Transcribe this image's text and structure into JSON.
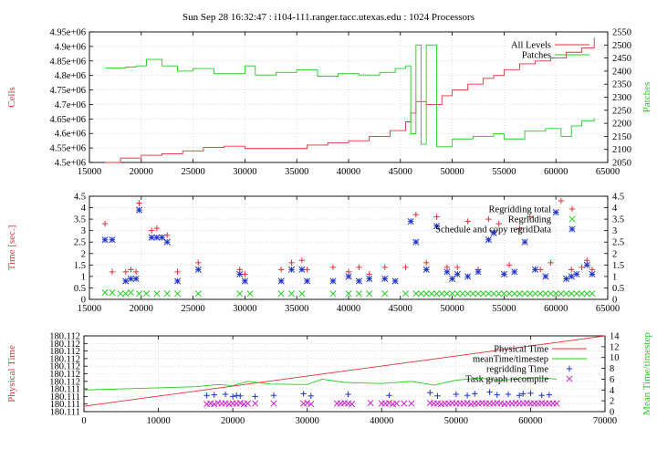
{
  "title": "Sun Sep 28 16:32:47 : i104-111.ranger.tacc.utexas.edu : 1024 Processors",
  "colors": {
    "red": "#e0303a",
    "green": "#22cc22",
    "blue": "#2233cc",
    "magenta": "#cc22cc",
    "grid": "#c8c8c8",
    "frame": "#000000"
  },
  "chart_data": [
    {
      "type": "line",
      "ylabel": "Cells",
      "y2label": "Patches",
      "xlim": [
        15000,
        65000
      ],
      "ylim": [
        4500000,
        4950000
      ],
      "y2lim": [
        2050,
        2550
      ],
      "xticks": [
        "15000",
        "20000",
        "25000",
        "30000",
        "35000",
        "40000",
        "45000",
        "50000",
        "55000",
        "60000",
        "65000"
      ],
      "yticks": [
        "4.5e+06",
        "4.55e+06",
        "4.6e+06",
        "4.65e+06",
        "4.7e+06",
        "4.75e+06",
        "4.8e+06",
        "4.85e+06",
        "4.9e+06",
        "4.95e+06"
      ],
      "y2ticks": [
        "2050",
        "2100",
        "2150",
        "2200",
        "2250",
        "2300",
        "2350",
        "2400",
        "2450",
        "2500",
        "2550"
      ],
      "legend_position": "top-right",
      "series": [
        {
          "name": "All Levels",
          "color": "red",
          "axis": "y",
          "x": [
            16500,
            18000,
            20000,
            22000,
            24000,
            26000,
            28000,
            30000,
            34000,
            36000,
            38000,
            40000,
            42000,
            44000,
            45500,
            46000,
            46500,
            47500,
            49000,
            50000,
            51500,
            53000,
            54000,
            55000,
            56500,
            58000,
            59500,
            61000,
            62500,
            63700
          ],
          "y": [
            4500000,
            4515000,
            4525000,
            4530000,
            4540000,
            4552000,
            4556000,
            4548000,
            4548000,
            4560000,
            4568000,
            4575000,
            4590000,
            4610000,
            4640000,
            4670000,
            4710000,
            4700000,
            4730000,
            4750000,
            4770000,
            4790000,
            4800000,
            4820000,
            4840000,
            4850000,
            4860000,
            4880000,
            4895000,
            4930000
          ]
        },
        {
          "name": "Patches",
          "color": "green",
          "axis": "y2",
          "x": [
            16500,
            18500,
            19500,
            20500,
            22000,
            23500,
            25000,
            27000,
            29500,
            30000,
            31000,
            33000,
            35000,
            37000,
            39000,
            41000,
            43000,
            44500,
            45500,
            46000,
            46500,
            47000,
            47500,
            48500,
            50000,
            52000,
            54000,
            55000,
            57000,
            59000,
            60500,
            61500,
            62500,
            63700
          ],
          "y": [
            2412,
            2415,
            2420,
            2445,
            2420,
            2400,
            2410,
            2390,
            2390,
            2420,
            2385,
            2395,
            2405,
            2380,
            2390,
            2385,
            2395,
            2410,
            2420,
            2160,
            2500,
            2120,
            2500,
            2110,
            2140,
            2150,
            2160,
            2140,
            2170,
            2180,
            2150,
            2190,
            2210,
            2220
          ]
        }
      ]
    },
    {
      "type": "scatter",
      "ylabel": "Time [sec.]",
      "xlim": [
        15000,
        65000
      ],
      "ylim": [
        0,
        4.5
      ],
      "xticks": [
        "15000",
        "20000",
        "25000",
        "30000",
        "35000",
        "40000",
        "45000",
        "50000",
        "55000",
        "60000",
        "65000"
      ],
      "yticks": [
        "0",
        "0.5",
        "1",
        "1.5",
        "2",
        "2.5",
        "3",
        "3.5",
        "4",
        "4.5"
      ],
      "legend_position": "top-right",
      "series": [
        {
          "name": "Regridding total",
          "color": "red",
          "marker": "plus",
          "x": [
            16500,
            17200,
            18500,
            19000,
            19500,
            19800,
            21000,
            21500,
            22500,
            23500,
            25500,
            29500,
            30000,
            33500,
            34500,
            35500,
            36000,
            38500,
            40000,
            41000,
            42000,
            43500,
            45500,
            46500,
            47500,
            48500,
            49500,
            50500,
            51500,
            52500,
            53500,
            54500,
            55500,
            56500,
            57500,
            58500,
            59500,
            60500,
            61500,
            62500,
            63000,
            63500
          ],
          "y": [
            3.3,
            1.2,
            1.2,
            1.3,
            1.2,
            4.2,
            3.0,
            3.1,
            2.8,
            1.2,
            1.6,
            1.3,
            1.1,
            1.3,
            1.6,
            1.7,
            1.3,
            1.4,
            1.2,
            1.4,
            1.1,
            1.4,
            1.4,
            3.7,
            1.6,
            3.6,
            1.4,
            1.4,
            3.4,
            1.3,
            3.5,
            3.3,
            1.5,
            3.1,
            3.6,
            1.3,
            1.6,
            4.3,
            1.3,
            1.4,
            1.7,
            1.3
          ]
        },
        {
          "name": "Regridding",
          "color": "green",
          "marker": "cross",
          "x": [
            16500,
            17200,
            18000,
            18500,
            19000,
            19800,
            20500,
            21500,
            22500,
            23500,
            25500,
            29500,
            30500,
            33500,
            34500,
            35500,
            38500,
            40000,
            41000,
            42000,
            43500,
            45500,
            46500,
            47000,
            47500,
            48000,
            48500,
            49000,
            49500,
            50000,
            50500,
            51000,
            51500,
            52000,
            52500,
            53000,
            53500,
            54000,
            54500,
            55000,
            55500,
            56000,
            56500,
            57000,
            57500,
            58000,
            58500,
            59000,
            59500,
            60000,
            60500,
            61000,
            61500,
            62000,
            62500,
            63000,
            63500
          ],
          "y": [
            0.3,
            0.3,
            0.25,
            0.25,
            0.3,
            0.25,
            0.25,
            0.25,
            0.25,
            0.25,
            0.25,
            0.25,
            0.25,
            0.25,
            0.25,
            0.25,
            0.25,
            0.25,
            0.25,
            0.25,
            0.25,
            0.25,
            0.25,
            0.25,
            0.25,
            0.25,
            0.25,
            0.25,
            0.25,
            0.25,
            0.25,
            0.25,
            0.25,
            0.25,
            0.25,
            0.25,
            0.25,
            0.25,
            0.25,
            0.25,
            0.25,
            0.25,
            0.25,
            0.25,
            0.25,
            0.25,
            0.25,
            0.25,
            0.25,
            0.25,
            0.25,
            0.25,
            0.25,
            0.25,
            0.25,
            0.25,
            0.25
          ]
        },
        {
          "name": "Schedule and copy regridData",
          "color": "blue",
          "marker": "star",
          "x": [
            16500,
            17200,
            18500,
            19000,
            19500,
            19800,
            21000,
            21500,
            22000,
            22500,
            23500,
            25500,
            29500,
            30000,
            33500,
            34500,
            35500,
            36000,
            38500,
            40000,
            41000,
            42000,
            43500,
            44500,
            46000,
            46500,
            47500,
            48500,
            49500,
            50000,
            50500,
            51500,
            52500,
            53500,
            54000,
            55000,
            56000,
            57000,
            58000,
            59000,
            60000,
            61000,
            61500,
            62000,
            63000,
            63500
          ],
          "y": [
            2.6,
            2.6,
            0.8,
            0.9,
            0.9,
            3.9,
            2.7,
            2.7,
            2.7,
            2.5,
            0.8,
            1.3,
            1.1,
            0.8,
            0.8,
            1.3,
            1.3,
            0.8,
            0.8,
            1.0,
            0.8,
            0.9,
            0.9,
            0.8,
            3.4,
            2.5,
            1.3,
            3.2,
            1.2,
            0.9,
            1.1,
            1.0,
            1.2,
            2.6,
            2.9,
            1.1,
            1.2,
            2.5,
            1.3,
            1.0,
            3.8,
            0.9,
            1.0,
            1.1,
            1.5,
            1.1
          ]
        }
      ]
    },
    {
      "type": "line",
      "ylabel": "Physical Time",
      "y2label": "Mean Time/timestep",
      "xlim": [
        0,
        70000
      ],
      "ylim": [
        180.111,
        180.112
      ],
      "y2lim": [
        0,
        14
      ],
      "xticks": [
        "0",
        "10000",
        "20000",
        "30000",
        "40000",
        "50000",
        "60000",
        "70000"
      ],
      "yticks": [
        "180.111",
        "180.111",
        "180.111",
        "180.111",
        "180.112",
        "180.112",
        "180.112",
        "180.112",
        "180.112",
        "180.112",
        "180.112"
      ],
      "y2ticks": [
        "0",
        "2",
        "4",
        "6",
        "8",
        "10",
        "12",
        "14"
      ],
      "legend_position": "top-right",
      "series": [
        {
          "name": "Physical Time",
          "color": "red",
          "marker": "line",
          "axis": "y2",
          "x": [
            0,
            70000
          ],
          "y": [
            1.0,
            14.0
          ]
        },
        {
          "name": "meanTime/timestep",
          "color": "green",
          "marker": "line",
          "axis": "y2",
          "x": [
            0,
            5000,
            10000,
            15000,
            18000,
            20000,
            22000,
            25000,
            30000,
            32000,
            35000,
            40000,
            44000,
            47000,
            50000,
            53000,
            56000,
            59000,
            61000,
            63500
          ],
          "y": [
            4.0,
            4.2,
            4.4,
            4.6,
            5.0,
            4.8,
            5.6,
            5.1,
            5.0,
            6.0,
            5.4,
            5.2,
            5.6,
            4.9,
            5.8,
            6.2,
            5.8,
            6.1,
            6.3,
            6.0
          ]
        },
        {
          "name": "regridding Time",
          "color": "blue",
          "marker": "plus",
          "axis": "y2",
          "x": [
            16500,
            17500,
            19000,
            20000,
            20500,
            21000,
            23000,
            25500,
            29500,
            30500,
            35500,
            41000,
            46500,
            47500,
            50000,
            51500,
            52500,
            54500,
            55500,
            57000,
            58500,
            59000,
            60000,
            61500,
            62500
          ],
          "y": [
            3.0,
            3.1,
            3.2,
            2.8,
            3.0,
            2.9,
            2.8,
            3.0,
            3.3,
            2.9,
            3.2,
            3.0,
            3.5,
            2.9,
            3.2,
            3.0,
            3.3,
            3.6,
            3.1,
            3.2,
            3.0,
            3.3,
            3.4,
            3.0,
            3.1
          ]
        },
        {
          "name": "Task graph recompile",
          "color": "magenta",
          "marker": "cross",
          "axis": "y2",
          "x": [
            16500,
            17000,
            17500,
            18000,
            18500,
            19000,
            19500,
            20000,
            20500,
            21000,
            21500,
            22000,
            23000,
            25500,
            29500,
            30000,
            30500,
            34000,
            34500,
            35000,
            35500,
            36000,
            38500,
            40000,
            40500,
            41000,
            41500,
            42000,
            43000,
            44000,
            46500,
            47000,
            47500,
            48000,
            48500,
            49000,
            49500,
            50000,
            50500,
            51000,
            51500,
            52000,
            52500,
            53000,
            53500,
            54000,
            54500,
            55000,
            55500,
            56000,
            56500,
            57000,
            57500,
            58000,
            58500,
            59000,
            59500,
            60000,
            60500,
            61000,
            61500,
            62000,
            62500,
            63000,
            63500
          ],
          "y": [
            1.4,
            1.5,
            1.4,
            1.6,
            1.5,
            1.5,
            1.4,
            1.5,
            1.5,
            1.6,
            1.4,
            1.5,
            1.5,
            1.5,
            1.5,
            1.6,
            1.4,
            1.5,
            1.5,
            1.6,
            1.5,
            1.4,
            1.6,
            1.5,
            1.5,
            1.6,
            1.4,
            1.5,
            1.5,
            1.5,
            1.6,
            1.5,
            1.5,
            1.4,
            1.5,
            1.5,
            1.6,
            1.5,
            1.5,
            1.5,
            1.6,
            1.4,
            1.5,
            1.5,
            1.6,
            1.5,
            1.5,
            1.5,
            1.6,
            1.5,
            1.4,
            1.5,
            1.5,
            1.6,
            1.5,
            1.5,
            1.6,
            1.5,
            1.5,
            1.5,
            1.6,
            1.5,
            1.5,
            1.5,
            1.5
          ]
        }
      ]
    }
  ]
}
